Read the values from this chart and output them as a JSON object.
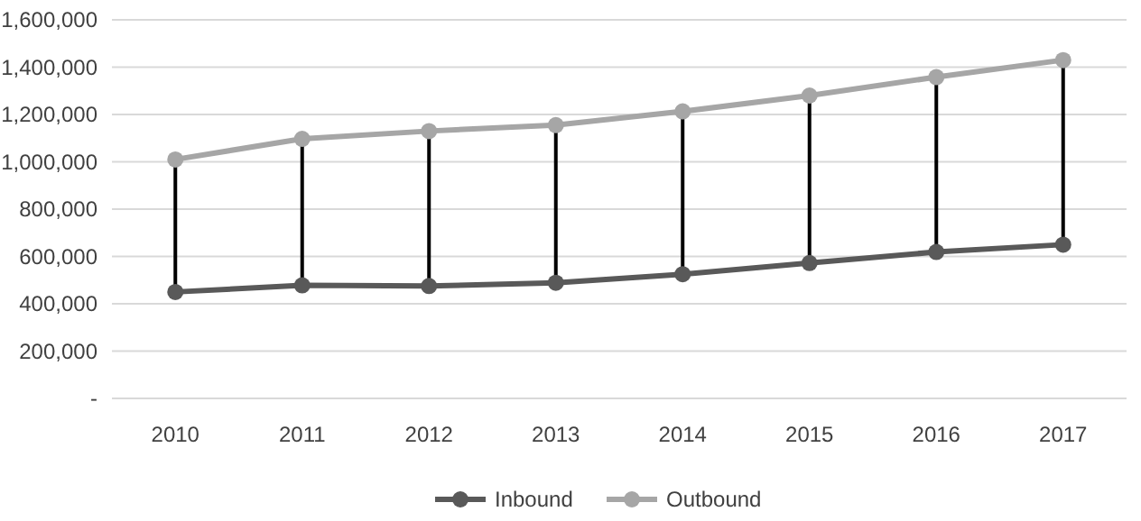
{
  "chart_data": {
    "type": "line",
    "categories": [
      "2010",
      "2011",
      "2012",
      "2013",
      "2014",
      "2015",
      "2016",
      "2017"
    ],
    "series": [
      {
        "name": "Inbound",
        "color": "#595959",
        "values": [
          450000,
          478000,
          475000,
          489000,
          525000,
          572000,
          619000,
          650000
        ]
      },
      {
        "name": "Outbound",
        "color": "#a6a6a6",
        "values": [
          1010000,
          1097000,
          1130000,
          1155000,
          1213000,
          1280000,
          1358000,
          1430000
        ]
      }
    ],
    "ylim": [
      0,
      1600000
    ],
    "yticks": [
      {
        "value": 0,
        "label": "-"
      },
      {
        "value": 200000,
        "label": "200,000"
      },
      {
        "value": 400000,
        "label": "400,000"
      },
      {
        "value": 600000,
        "label": "600,000"
      },
      {
        "value": 800000,
        "label": "800,000"
      },
      {
        "value": 1000000,
        "label": "1,000,000"
      },
      {
        "value": 1200000,
        "label": "1,200,000"
      },
      {
        "value": 1400000,
        "label": "1,400,000"
      },
      {
        "value": 1600000,
        "label": "1,600,000"
      }
    ],
    "grid": "y",
    "legend": "bottom",
    "marker": "circle",
    "line_style": "solid"
  }
}
